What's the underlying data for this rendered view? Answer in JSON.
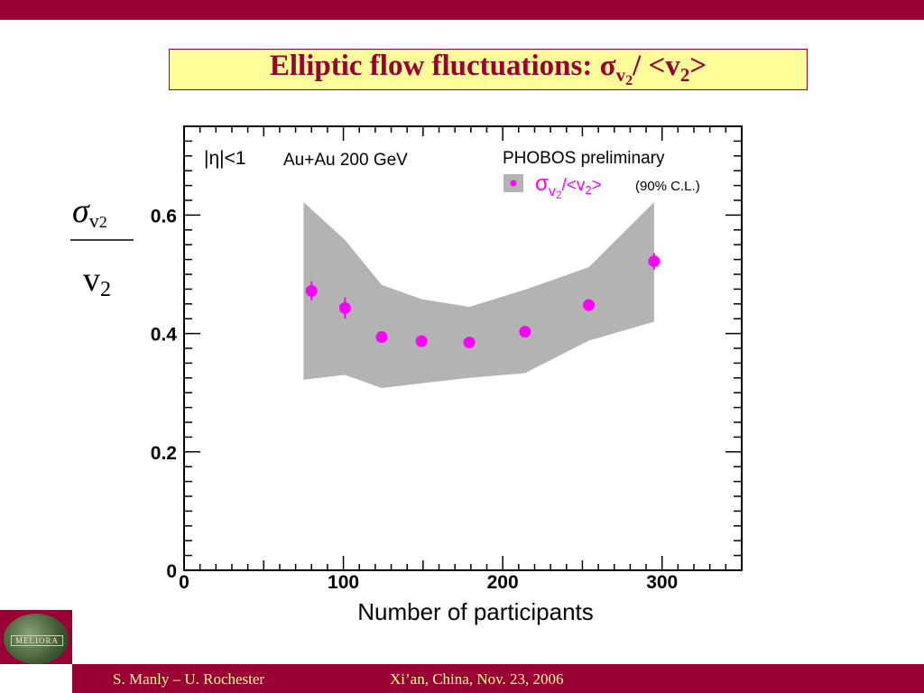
{
  "slide": {
    "title_main": "Elliptic flow fluctuations: σ",
    "title_sub": "v",
    "title_subsub": "2",
    "title_mid": "/ <v",
    "title_sub2": "2",
    "title_end": ">",
    "footer_left": "S. Manly – U. Rochester",
    "footer_right": "Xi’an, China, Nov. 23, 2006",
    "logo_text": "MELIORA"
  },
  "colors": {
    "accent": "#990033",
    "title_bg": "#ffff99",
    "footer_text": "#ffff99",
    "band": "#b3b3b3",
    "points": "#ff00ff"
  },
  "chart_data": {
    "type": "scatter",
    "x": [
      80,
      101,
      124,
      149,
      179,
      214,
      254,
      295
    ],
    "series": [
      {
        "name": "σv2/<v2>",
        "values": [
          0.472,
          0.443,
          0.394,
          0.387,
          0.385,
          0.403,
          0.448,
          0.522
        ],
        "errors": [
          0.016,
          0.018,
          0.006,
          0.006,
          0.006,
          0.008,
          0.01,
          0.014
        ]
      }
    ],
    "band": {
      "name": "(90% C.L.)",
      "x": [
        75,
        101,
        124,
        149,
        179,
        214,
        254,
        295
      ],
      "upper": [
        0.622,
        0.558,
        0.482,
        0.458,
        0.445,
        0.474,
        0.512,
        0.622
      ],
      "lower": [
        0.322,
        0.33,
        0.308,
        0.316,
        0.325,
        0.333,
        0.388,
        0.42
      ]
    },
    "xlim": [
      0,
      350
    ],
    "ylim": [
      0,
      0.75
    ],
    "x_ticks": [
      "0",
      "100",
      "200",
      "300"
    ],
    "y_ticks": [
      "0",
      "0.2",
      "0.4",
      "0.6"
    ],
    "xlabel": "Number of participants",
    "ylabel_num": "σ",
    "ylabel_num_sub": "v",
    "ylabel_num_subsub": "2",
    "ylabel_den": "v",
    "ylabel_den_sub": "2",
    "annotations": {
      "eta_cut": "|η|<1",
      "system": "Au+Au 200 GeV",
      "experiment": "PHOBOS preliminary"
    },
    "legend": {
      "position": "top-right",
      "label_sigma": "σ",
      "label_v": "v",
      "label_2": "2",
      "label_slash": "/<v",
      "label_2b": "2",
      "label_close": ">",
      "cl": "(90% C.L.)"
    },
    "grid": false
  }
}
